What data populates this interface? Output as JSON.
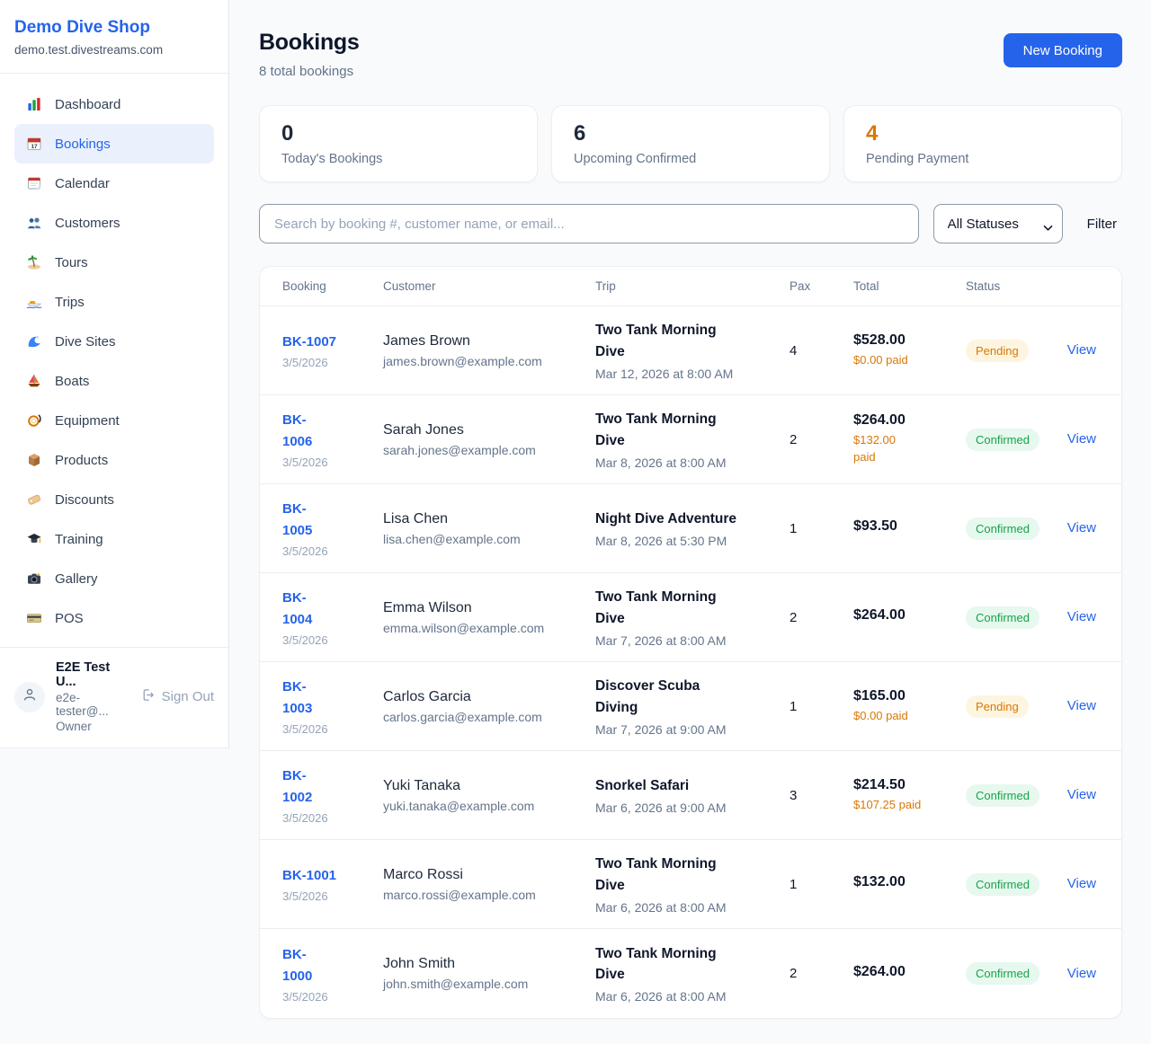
{
  "sidebar": {
    "brand": {
      "name": "Demo Dive Shop",
      "domain": "demo.test.divestreams.com"
    },
    "nav": [
      {
        "label": "Dashboard",
        "icon": "bar-chart-icon",
        "active": false
      },
      {
        "label": "Bookings",
        "icon": "calendar-date-icon",
        "active": true
      },
      {
        "label": "Calendar",
        "icon": "tear-calendar-icon",
        "active": false
      },
      {
        "label": "Customers",
        "icon": "people-icon",
        "active": false
      },
      {
        "label": "Tours",
        "icon": "island-icon",
        "active": false
      },
      {
        "label": "Trips",
        "icon": "speedboat-icon",
        "active": false
      },
      {
        "label": "Dive Sites",
        "icon": "wave-icon",
        "active": false
      },
      {
        "label": "Boats",
        "icon": "sailboat-icon",
        "active": false
      },
      {
        "label": "Equipment",
        "icon": "diving-mask-icon",
        "active": false
      },
      {
        "label": "Products",
        "icon": "package-icon",
        "active": false
      },
      {
        "label": "Discounts",
        "icon": "tag-icon",
        "active": false
      },
      {
        "label": "Training",
        "icon": "grad-cap-icon",
        "active": false
      },
      {
        "label": "Gallery",
        "icon": "camera-icon",
        "active": false
      },
      {
        "label": "POS",
        "icon": "credit-card-icon",
        "active": false
      }
    ],
    "user": {
      "name": "E2E Test U...",
      "email": "e2e-tester@...",
      "role": "Owner",
      "signout": "Sign Out"
    }
  },
  "header": {
    "title": "Bookings",
    "subtitle": "8 total bookings",
    "new_booking": "New Booking"
  },
  "stats": [
    {
      "value": "0",
      "label": "Today's Bookings",
      "accent": "dark"
    },
    {
      "value": "6",
      "label": "Upcoming Confirmed",
      "accent": "dark"
    },
    {
      "value": "4",
      "label": "Pending Payment",
      "accent": "orange"
    }
  ],
  "filters": {
    "search_placeholder": "Search by booking #, customer name, or email...",
    "status_value": "All Statuses",
    "filter_label": "Filter"
  },
  "table": {
    "columns": [
      "Booking",
      "Customer",
      "Trip",
      "Pax",
      "Total",
      "Status"
    ],
    "view_label": "View",
    "rows": [
      {
        "id_lines": [
          "BK-1007"
        ],
        "date": "3/5/2026",
        "name": "James Brown",
        "email": "james.brown@example.com",
        "trip_lines": [
          "Two Tank Morning",
          "Dive"
        ],
        "trip_datetime": "Mar 12, 2026 at 8:00 AM",
        "pax": "4",
        "total": "$528.00",
        "paid_lines": [
          "$0.00 paid"
        ],
        "status": "Pending"
      },
      {
        "id_lines": [
          "BK-",
          "1006"
        ],
        "date": "3/5/2026",
        "name": "Sarah Jones",
        "email": "sarah.jones@example.com",
        "trip_lines": [
          "Two Tank Morning",
          "Dive"
        ],
        "trip_datetime": "Mar 8, 2026 at 8:00 AM",
        "pax": "2",
        "total": "$264.00",
        "paid_lines": [
          "$132.00",
          "paid"
        ],
        "status": "Confirmed"
      },
      {
        "id_lines": [
          "BK-",
          "1005"
        ],
        "date": "3/5/2026",
        "name": "Lisa Chen",
        "email": "lisa.chen@example.com",
        "trip_lines": [
          "Night Dive Adventure"
        ],
        "trip_datetime": "Mar 8, 2026 at 5:30 PM",
        "pax": "1",
        "total": "$93.50",
        "paid_lines": [],
        "status": "Confirmed"
      },
      {
        "id_lines": [
          "BK-",
          "1004"
        ],
        "date": "3/5/2026",
        "name": "Emma Wilson",
        "email": "emma.wilson@example.com",
        "trip_lines": [
          "Two Tank Morning",
          "Dive"
        ],
        "trip_datetime": "Mar 7, 2026 at 8:00 AM",
        "pax": "2",
        "total": "$264.00",
        "paid_lines": [],
        "status": "Confirmed"
      },
      {
        "id_lines": [
          "BK-",
          "1003"
        ],
        "date": "3/5/2026",
        "name": "Carlos Garcia",
        "email": "carlos.garcia@example.com",
        "trip_lines": [
          "Discover Scuba",
          "Diving"
        ],
        "trip_datetime": "Mar 7, 2026 at 9:00 AM",
        "pax": "1",
        "total": "$165.00",
        "paid_lines": [
          "$0.00 paid"
        ],
        "status": "Pending"
      },
      {
        "id_lines": [
          "BK-",
          "1002"
        ],
        "date": "3/5/2026",
        "name": "Yuki Tanaka",
        "email": "yuki.tanaka@example.com",
        "trip_lines": [
          "Snorkel Safari"
        ],
        "trip_datetime": "Mar 6, 2026 at 9:00 AM",
        "pax": "3",
        "total": "$214.50",
        "paid_lines": [
          "$107.25 paid"
        ],
        "status": "Confirmed"
      },
      {
        "id_lines": [
          "BK-1001"
        ],
        "date": "3/5/2026",
        "name": "Marco Rossi",
        "email": "marco.rossi@example.com",
        "trip_lines": [
          "Two Tank Morning",
          "Dive"
        ],
        "trip_datetime": "Mar 6, 2026 at 8:00 AM",
        "pax": "1",
        "total": "$132.00",
        "paid_lines": [],
        "status": "Confirmed"
      },
      {
        "id_lines": [
          "BK-",
          "1000"
        ],
        "date": "3/5/2026",
        "name": "John Smith",
        "email": "john.smith@example.com",
        "trip_lines": [
          "Two Tank Morning",
          "Dive"
        ],
        "trip_datetime": "Mar 6, 2026 at 8:00 AM",
        "pax": "2",
        "total": "$264.00",
        "paid_lines": [],
        "status": "Confirmed"
      }
    ]
  },
  "colors": {
    "accent_blue": "#2563eb",
    "orange": "#d97706",
    "green": "#16a34a",
    "pending_badge_bg": "#fdf5e0",
    "confirmed_badge_bg": "#e7f8ee",
    "page_bg": "#f8fafc",
    "border": "#e8edf3"
  }
}
